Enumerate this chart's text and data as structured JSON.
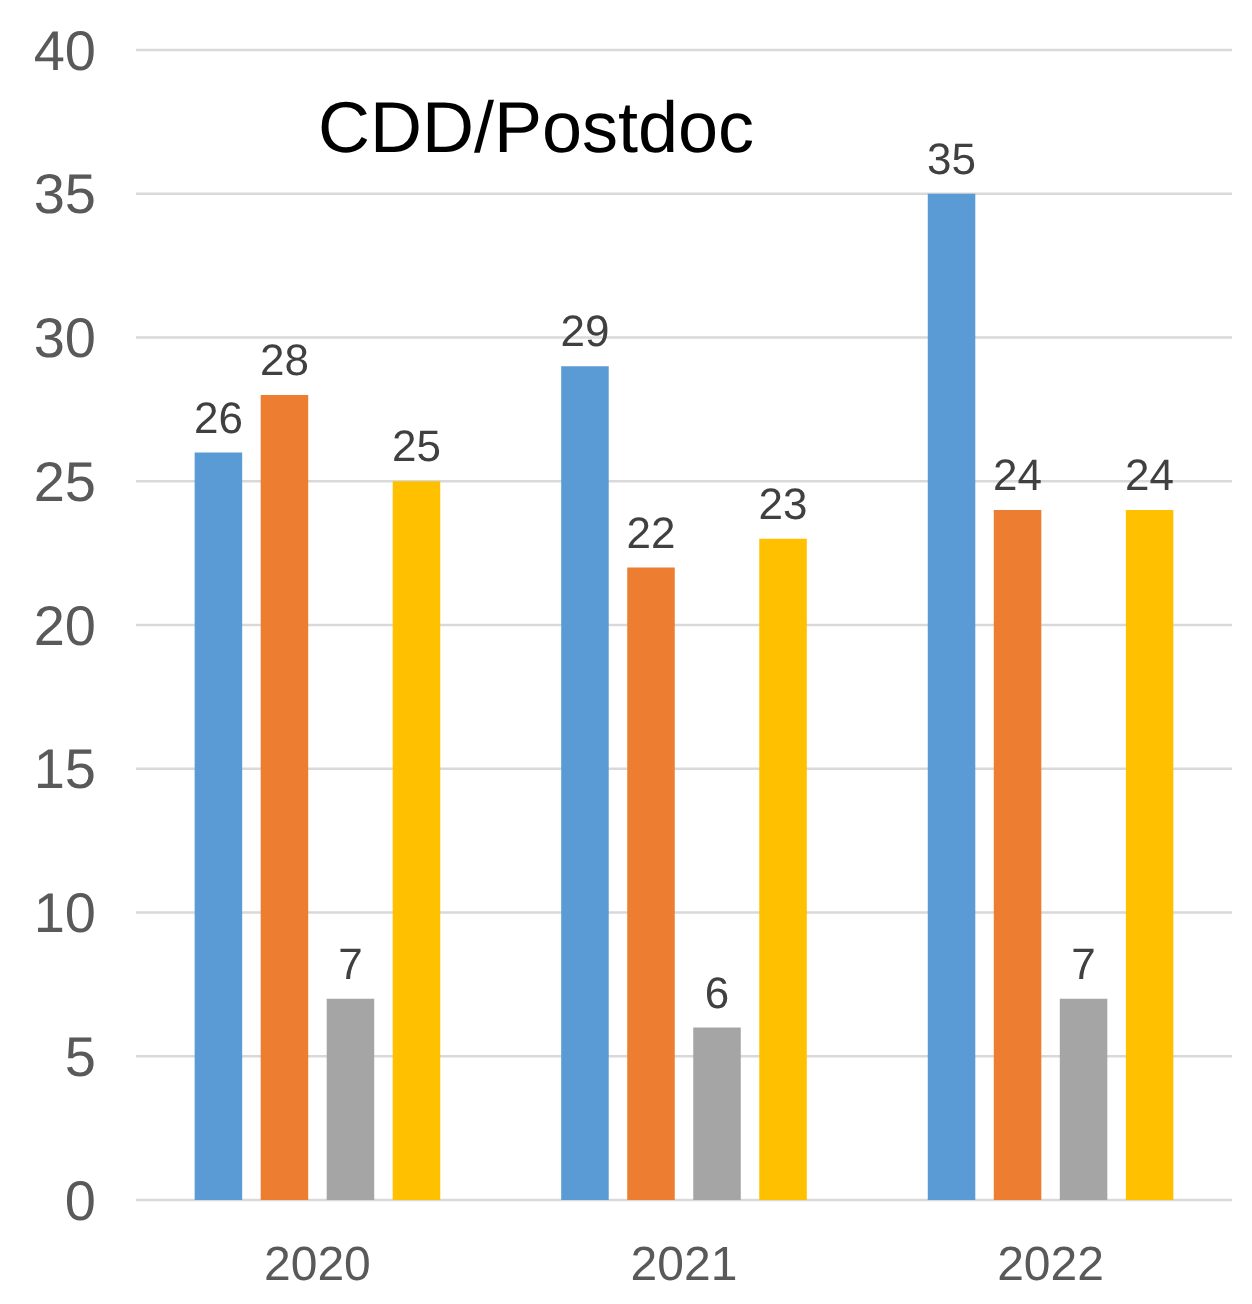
{
  "chart_data": {
    "type": "bar",
    "title": "CDD/Postdoc",
    "categories": [
      "2020",
      "2021",
      "2022"
    ],
    "series": [
      {
        "color": "#5b9bd5",
        "values": [
          26,
          29,
          35
        ]
      },
      {
        "color": "#ed7d31",
        "values": [
          28,
          22,
          24
        ]
      },
      {
        "color": "#a5a5a5",
        "values": [
          7,
          6,
          7
        ]
      },
      {
        "color": "#ffc000",
        "values": [
          25,
          23,
          24
        ]
      }
    ],
    "ylim": [
      0,
      40
    ],
    "yticks": [
      0,
      5,
      10,
      15,
      20,
      25,
      30,
      35,
      40
    ],
    "grid": "y",
    "data_labels": true
  }
}
